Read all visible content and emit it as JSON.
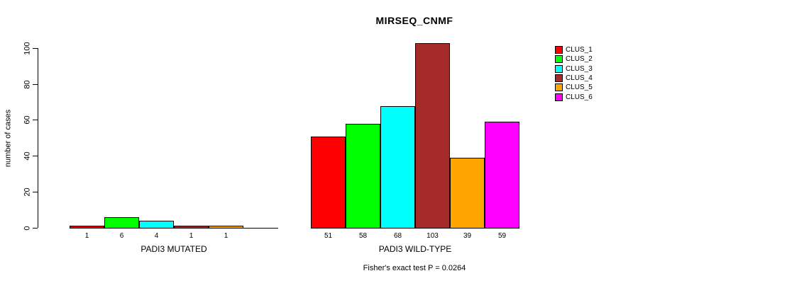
{
  "title": "MIRSEQ_CNMF",
  "footer": "Fisher's exact test P = 0.0264",
  "chart_data": {
    "type": "bar",
    "title": "MIRSEQ_CNMF",
    "xlabel": "",
    "ylabel": "number of cases",
    "ylim": [
      0,
      103
    ],
    "yticks": [
      0,
      20,
      40,
      60,
      80,
      100
    ],
    "grid": false,
    "legend_position": "right",
    "clusters": [
      {
        "name": "CLUS_1",
        "color": "#FF0000"
      },
      {
        "name": "CLUS_2",
        "color": "#00FF00"
      },
      {
        "name": "CLUS_3",
        "color": "#00FFFF"
      },
      {
        "name": "CLUS_4",
        "color": "#A52A2A"
      },
      {
        "name": "CLUS_5",
        "color": "#FFA500"
      },
      {
        "name": "CLUS_6",
        "color": "#FF00FF"
      }
    ],
    "groups": [
      {
        "label": "PADI3 MUTATED",
        "values": [
          1,
          6,
          4,
          1,
          1,
          0
        ],
        "bar_labels": [
          "1",
          "6",
          "4",
          "1",
          "1",
          ""
        ]
      },
      {
        "label": "PADI3 WILD-TYPE",
        "values": [
          51,
          58,
          68,
          103,
          39,
          59
        ],
        "bar_labels": [
          "51",
          "58",
          "68",
          "103",
          "39",
          "59"
        ]
      }
    ],
    "annotation": "Fisher's exact test P = 0.0264"
  }
}
